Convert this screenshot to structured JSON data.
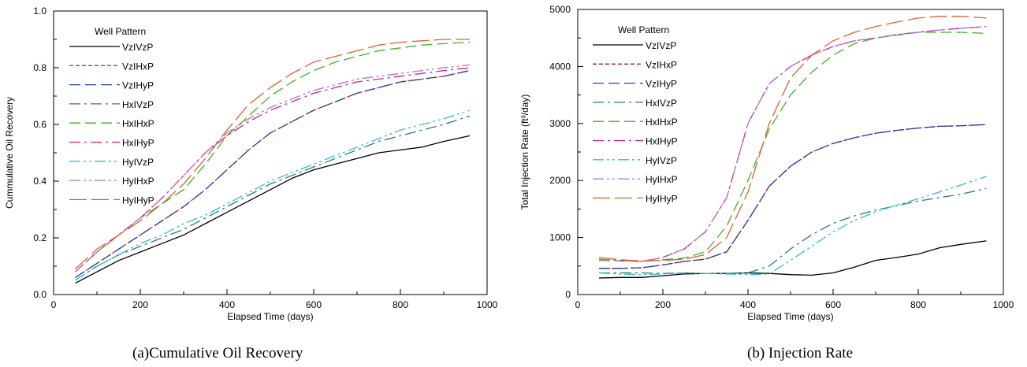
{
  "captions": {
    "left": "(a)Cumulative Oil Recovery",
    "right": "(b) Injection Rate"
  },
  "chart_data": [
    {
      "type": "line",
      "title": "",
      "xlabel": "Elapsed Time (days)",
      "ylabel": "Cummulative Oil Recovery",
      "xlim": [
        0,
        1000
      ],
      "ylim": [
        0,
        1.0
      ],
      "xticks": [
        "0",
        "200",
        "400",
        "600",
        "800",
        "1000"
      ],
      "yticks": [
        "0.0",
        "0.2",
        "0.4",
        "0.6",
        "0.8",
        "1.0"
      ],
      "legend_title": "Well Pattern",
      "legend_position": "top-left",
      "grid": false,
      "series": [
        {
          "name": "VzIVzP",
          "color": "#000000",
          "dash": "solid",
          "x": [
            50,
            100,
            150,
            200,
            250,
            300,
            350,
            400,
            450,
            500,
            550,
            600,
            650,
            700,
            750,
            800,
            850,
            900,
            960
          ],
          "y": [
            0.04,
            0.08,
            0.12,
            0.15,
            0.18,
            0.21,
            0.25,
            0.29,
            0.33,
            0.37,
            0.41,
            0.44,
            0.46,
            0.48,
            0.5,
            0.51,
            0.52,
            0.54,
            0.56
          ]
        },
        {
          "name": "VzIHxP",
          "color": "#e03020",
          "dash": "short",
          "x": [
            50,
            100,
            150,
            200,
            250,
            300,
            350,
            400,
            450,
            500,
            550,
            600,
            650,
            700,
            750,
            800,
            850,
            900,
            960
          ],
          "y": [
            0.06,
            0.11,
            0.16,
            0.21,
            0.26,
            0.31,
            0.37,
            0.44,
            0.51,
            0.57,
            0.61,
            0.65,
            0.68,
            0.71,
            0.73,
            0.75,
            0.76,
            0.77,
            0.79
          ]
        },
        {
          "name": "VzIHyP",
          "color": "#2040b0",
          "dash": "long",
          "x": [
            50,
            100,
            150,
            200,
            250,
            300,
            350,
            400,
            450,
            500,
            550,
            600,
            650,
            700,
            750,
            800,
            850,
            900,
            960
          ],
          "y": [
            0.06,
            0.11,
            0.16,
            0.21,
            0.26,
            0.31,
            0.37,
            0.44,
            0.51,
            0.57,
            0.61,
            0.65,
            0.68,
            0.71,
            0.73,
            0.75,
            0.76,
            0.77,
            0.79
          ]
        },
        {
          "name": "HxIVzP",
          "color": "#307878",
          "dash": "dashdot",
          "x": [
            50,
            100,
            150,
            200,
            250,
            300,
            350,
            400,
            450,
            500,
            550,
            600,
            650,
            700,
            750,
            800,
            850,
            900,
            960
          ],
          "y": [
            0.05,
            0.1,
            0.14,
            0.17,
            0.2,
            0.23,
            0.27,
            0.31,
            0.35,
            0.39,
            0.42,
            0.45,
            0.48,
            0.51,
            0.54,
            0.56,
            0.58,
            0.6,
            0.63
          ]
        },
        {
          "name": "HxIHxP",
          "color": "#40b020",
          "dash": "long",
          "x": [
            50,
            100,
            150,
            200,
            250,
            300,
            350,
            400,
            450,
            500,
            550,
            600,
            650,
            700,
            750,
            800,
            850,
            900,
            960
          ],
          "y": [
            0.08,
            0.15,
            0.21,
            0.27,
            0.32,
            0.37,
            0.46,
            0.56,
            0.63,
            0.7,
            0.75,
            0.79,
            0.82,
            0.84,
            0.86,
            0.87,
            0.88,
            0.885,
            0.89
          ]
        },
        {
          "name": "HxIHyP",
          "color": "#d0208a",
          "dash": "dashdot",
          "x": [
            50,
            100,
            150,
            200,
            250,
            300,
            350,
            400,
            450,
            500,
            550,
            600,
            650,
            700,
            750,
            800,
            850,
            900,
            960
          ],
          "y": [
            0.08,
            0.15,
            0.21,
            0.27,
            0.34,
            0.42,
            0.5,
            0.56,
            0.61,
            0.65,
            0.68,
            0.71,
            0.73,
            0.75,
            0.76,
            0.77,
            0.78,
            0.79,
            0.8
          ]
        },
        {
          "name": "HyIVzP",
          "color": "#30c0c8",
          "dash": "dashdotdot",
          "x": [
            50,
            100,
            150,
            200,
            250,
            300,
            350,
            400,
            450,
            500,
            550,
            600,
            650,
            700,
            750,
            800,
            850,
            900,
            960
          ],
          "y": [
            0.05,
            0.1,
            0.14,
            0.18,
            0.21,
            0.25,
            0.28,
            0.32,
            0.36,
            0.4,
            0.43,
            0.46,
            0.49,
            0.52,
            0.55,
            0.58,
            0.6,
            0.62,
            0.65
          ]
        },
        {
          "name": "HyIHxP",
          "color": "#b070d0",
          "dash": "dashdotdot",
          "x": [
            50,
            100,
            150,
            200,
            250,
            300,
            350,
            400,
            450,
            500,
            550,
            600,
            650,
            700,
            750,
            800,
            850,
            900,
            960
          ],
          "y": [
            0.08,
            0.15,
            0.21,
            0.27,
            0.34,
            0.42,
            0.5,
            0.57,
            0.62,
            0.66,
            0.69,
            0.72,
            0.74,
            0.76,
            0.77,
            0.78,
            0.79,
            0.8,
            0.81
          ]
        },
        {
          "name": "HyIHyP",
          "color": "#e06030",
          "dash": "longer",
          "x": [
            50,
            100,
            150,
            200,
            250,
            300,
            350,
            400,
            450,
            500,
            550,
            600,
            650,
            700,
            750,
            800,
            850,
            900,
            960
          ],
          "y": [
            0.09,
            0.16,
            0.21,
            0.26,
            0.32,
            0.39,
            0.48,
            0.58,
            0.67,
            0.73,
            0.78,
            0.82,
            0.84,
            0.86,
            0.88,
            0.89,
            0.895,
            0.9,
            0.9
          ]
        }
      ]
    },
    {
      "type": "line",
      "title": "",
      "xlabel": "Elapsed Time (days)",
      "ylabel": "Total Injection Rate (ft³/day)",
      "xlim": [
        0,
        1000
      ],
      "ylim": [
        0,
        5000
      ],
      "xticks": [
        "0",
        "200",
        "400",
        "600",
        "800",
        "1000"
      ],
      "yticks": [
        "0",
        "1000",
        "2000",
        "3000",
        "4000",
        "5000"
      ],
      "legend_title": "Well Pattern",
      "legend_position": "top-left",
      "grid": false,
      "series": [
        {
          "name": "VzIVzP",
          "color": "#000000",
          "dash": "solid",
          "x": [
            50,
            100,
            150,
            200,
            250,
            300,
            350,
            400,
            450,
            500,
            550,
            600,
            650,
            700,
            750,
            800,
            850,
            900,
            960
          ],
          "y": [
            290,
            300,
            300,
            330,
            360,
            370,
            370,
            380,
            370,
            350,
            340,
            380,
            480,
            600,
            650,
            710,
            820,
            880,
            940
          ]
        },
        {
          "name": "VzIHxP",
          "color": "#8b1a3a",
          "dash": "short",
          "x": [
            50,
            100,
            150,
            200,
            250,
            300,
            350,
            400,
            450,
            500,
            550,
            600,
            650,
            700,
            750,
            800,
            850,
            900,
            960
          ],
          "y": [
            460,
            460,
            470,
            520,
            580,
            620,
            750,
            1300,
            1900,
            2250,
            2500,
            2650,
            2750,
            2830,
            2880,
            2920,
            2950,
            2960,
            2980
          ]
        },
        {
          "name": "VzIHyP",
          "color": "#2040b0",
          "dash": "long",
          "x": [
            50,
            100,
            150,
            200,
            250,
            300,
            350,
            400,
            450,
            500,
            550,
            600,
            650,
            700,
            750,
            800,
            850,
            900,
            960
          ],
          "y": [
            460,
            460,
            470,
            520,
            580,
            620,
            750,
            1300,
            1900,
            2250,
            2500,
            2650,
            2750,
            2830,
            2880,
            2920,
            2950,
            2960,
            2980
          ]
        },
        {
          "name": "HxIVzP",
          "color": "#307878",
          "dash": "dashdot",
          "x": [
            50,
            100,
            150,
            200,
            250,
            300,
            350,
            400,
            450,
            500,
            550,
            600,
            650,
            700,
            750,
            800,
            850,
            900,
            960
          ],
          "y": [
            380,
            380,
            380,
            370,
            380,
            370,
            370,
            380,
            500,
            800,
            1050,
            1250,
            1380,
            1480,
            1560,
            1640,
            1700,
            1760,
            1860
          ]
        },
        {
          "name": "HxIHxP",
          "color": "#40b020",
          "dash": "long",
          "x": [
            50,
            100,
            150,
            200,
            250,
            300,
            350,
            400,
            450,
            500,
            550,
            600,
            650,
            700,
            750,
            800,
            850,
            900,
            960
          ],
          "y": [
            600,
            590,
            580,
            610,
            640,
            750,
            1200,
            2000,
            2900,
            3500,
            3900,
            4200,
            4400,
            4500,
            4550,
            4600,
            4600,
            4600,
            4580
          ]
        },
        {
          "name": "HxIHyP",
          "color": "#d0208a",
          "dash": "dashdot",
          "x": [
            50,
            100,
            150,
            200,
            250,
            300,
            350,
            400,
            450,
            500,
            550,
            600,
            650,
            700,
            750,
            800,
            850,
            900,
            960
          ],
          "y": [
            620,
            600,
            580,
            650,
            800,
            1100,
            1700,
            3000,
            3700,
            4000,
            4200,
            4350,
            4450,
            4500,
            4560,
            4600,
            4640,
            4670,
            4700
          ]
        },
        {
          "name": "HyIVzP",
          "color": "#30c0c8",
          "dash": "dashdotdot",
          "x": [
            50,
            100,
            150,
            200,
            250,
            300,
            350,
            400,
            450,
            500,
            550,
            600,
            650,
            700,
            750,
            800,
            850,
            900,
            960
          ],
          "y": [
            380,
            360,
            350,
            360,
            380,
            370,
            360,
            350,
            360,
            600,
            850,
            1100,
            1300,
            1450,
            1570,
            1680,
            1800,
            1920,
            2070
          ]
        },
        {
          "name": "HyIHxP",
          "color": "#b070d0",
          "dash": "dashdotdot",
          "x": [
            50,
            100,
            150,
            200,
            250,
            300,
            350,
            400,
            450,
            500,
            550,
            600,
            650,
            700,
            750,
            800,
            850,
            900,
            960
          ],
          "y": [
            620,
            600,
            580,
            650,
            800,
            1100,
            1700,
            3000,
            3700,
            4000,
            4200,
            4350,
            4450,
            4500,
            4560,
            4600,
            4640,
            4670,
            4700
          ]
        },
        {
          "name": "HyIHyP",
          "color": "#e06030",
          "dash": "longer",
          "x": [
            50,
            100,
            150,
            200,
            250,
            300,
            350,
            400,
            450,
            500,
            550,
            600,
            650,
            700,
            750,
            800,
            850,
            900,
            960
          ],
          "y": [
            650,
            610,
            590,
            600,
            620,
            700,
            1000,
            1800,
            3000,
            3800,
            4200,
            4450,
            4600,
            4700,
            4780,
            4850,
            4880,
            4880,
            4850
          ]
        }
      ]
    }
  ]
}
